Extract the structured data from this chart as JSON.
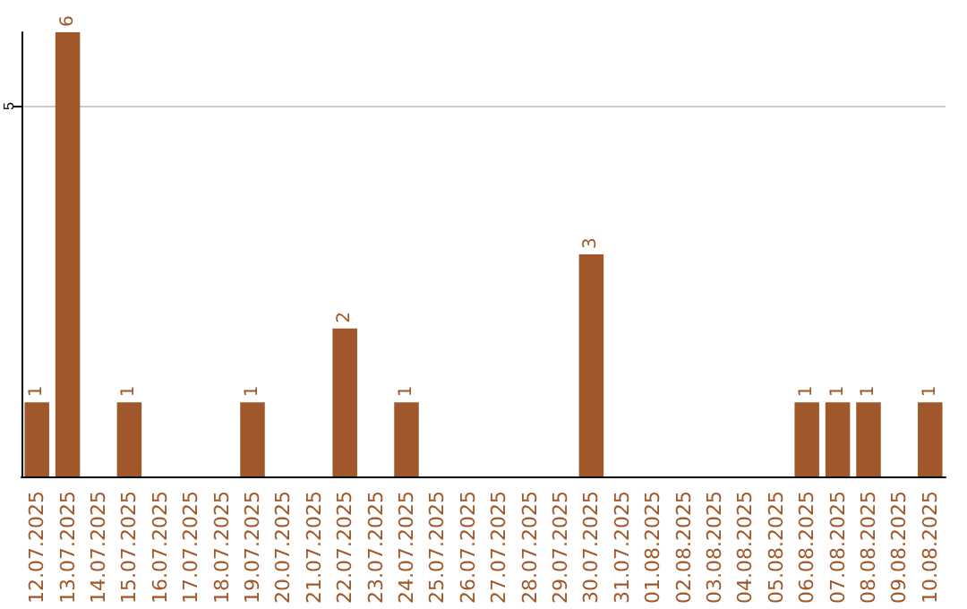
{
  "chart_data": {
    "type": "bar",
    "categories": [
      "12.07.2025",
      "13.07.2025",
      "14.07.2025",
      "15.07.2025",
      "16.07.2025",
      "17.07.2025",
      "18.07.2025",
      "19.07.2025",
      "20.07.2025",
      "21.07.2025",
      "22.07.2025",
      "23.07.2025",
      "24.07.2025",
      "25.07.2025",
      "26.07.2025",
      "27.07.2025",
      "28.07.2025",
      "29.07.2025",
      "30.07.2025",
      "31.07.2025",
      "01.08.2025",
      "02.08.2025",
      "03.08.2025",
      "04.08.2025",
      "05.08.2025",
      "06.08.2025",
      "07.08.2025",
      "08.08.2025",
      "09.08.2025",
      "10.08.2025"
    ],
    "values": [
      1,
      6,
      0,
      1,
      0,
      0,
      0,
      1,
      0,
      0,
      2,
      0,
      1,
      0,
      0,
      0,
      0,
      0,
      3,
      0,
      0,
      0,
      0,
      0,
      0,
      1,
      1,
      1,
      0,
      1
    ],
    "value_labels": [
      "1",
      "6",
      null,
      "1",
      null,
      null,
      null,
      "1",
      null,
      null,
      "2",
      null,
      "1",
      null,
      null,
      null,
      null,
      null,
      "3",
      null,
      null,
      null,
      null,
      null,
      null,
      "1",
      "1",
      "1",
      null,
      "1"
    ],
    "color": "#a0582a",
    "ylim": [
      0,
      6
    ],
    "yticks": [
      5
    ],
    "grid": "y"
  }
}
